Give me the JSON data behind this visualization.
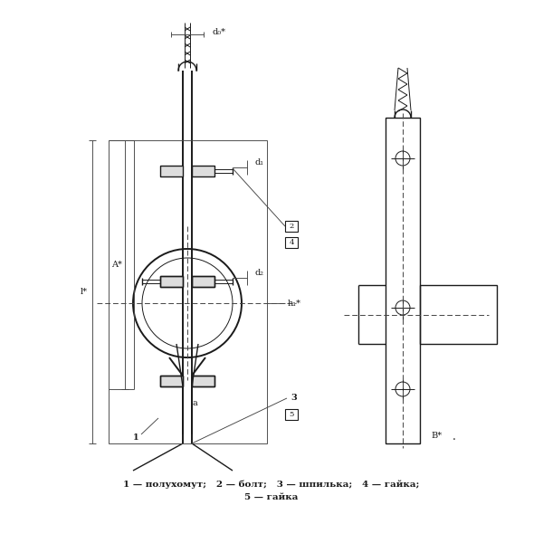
{
  "bg_color": "#ffffff",
  "line_color": "#1a1a1a",
  "dim_color": "#2a2a2a",
  "caption_line1": "1 — полухомут;   2 — болт;   3 — шпилька;   4 — гайка;",
  "caption_line2": "5 — гайка",
  "label_d0": "d₀*",
  "label_d1": "d₁",
  "label_d2": "d₂",
  "label_h1": "h₁*",
  "label_l": "l*",
  "label_a": "a",
  "label_B": "B*",
  "label_A": "A*",
  "label_1": "1",
  "label_2": "2",
  "label_3": "3",
  "label_4": "4",
  "label_5": "5"
}
